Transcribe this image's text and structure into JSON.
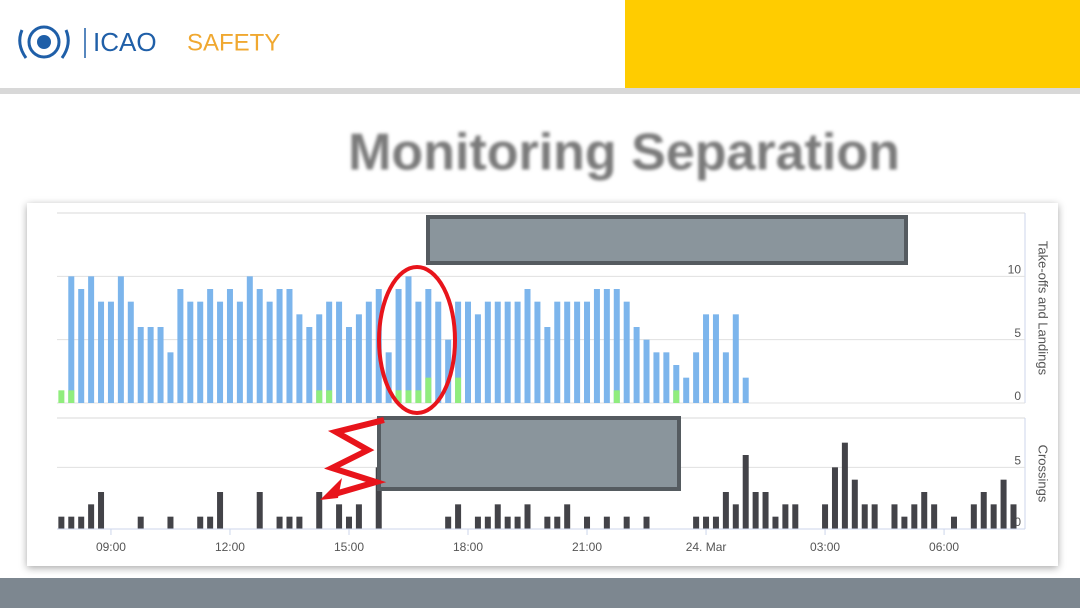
{
  "header": {
    "org": "ICAO",
    "section": "SAFETY"
  },
  "slide": {
    "title": "Monitoring Separation"
  },
  "chart_data": [
    {
      "type": "bar",
      "y_label": "Take-offs and Landings",
      "x": [
        7.75,
        8,
        8.25,
        8.5,
        8.75,
        9,
        9.25,
        9.5,
        9.75,
        10,
        10.25,
        10.5,
        10.75,
        11,
        11.25,
        11.5,
        11.75,
        12,
        12.25,
        12.5,
        12.75,
        13,
        13.25,
        13.5,
        13.75,
        14,
        14.25,
        14.5,
        14.75,
        15,
        15.25,
        15.5,
        15.75,
        16,
        16.25,
        16.5,
        16.75,
        17,
        17.25,
        17.5,
        17.75,
        18,
        18.25,
        18.5,
        18.75,
        19,
        19.25,
        19.5,
        19.75,
        20,
        20.25,
        20.5,
        20.75,
        21,
        21.25,
        21.5,
        21.75,
        22,
        22.25,
        22.5,
        22.75,
        23,
        23.25,
        23.5,
        23.75,
        24,
        24.25,
        24.5,
        24.75,
        25
      ],
      "xlim": [
        7.64,
        32.04
      ],
      "ylim": [
        0,
        15
      ],
      "yticks": [
        0,
        5,
        10
      ],
      "grid": true,
      "series": [
        {
          "color": "#7cb5ec",
          "values": [
            null,
            10,
            9,
            10,
            8,
            8,
            10,
            8,
            6,
            6,
            6,
            4,
            9,
            8,
            8,
            9,
            8,
            9,
            8,
            10,
            9,
            8,
            9,
            9,
            7,
            6,
            7,
            8,
            8,
            6,
            7,
            8,
            9,
            4,
            9,
            10,
            8,
            9,
            8,
            5,
            8,
            8,
            7,
            8,
            8,
            8,
            8,
            9,
            8,
            6,
            8,
            8,
            8,
            8,
            9,
            9,
            9,
            8,
            6,
            5,
            4,
            4,
            3,
            2,
            4,
            7,
            7,
            4,
            7,
            2
          ]
        },
        {
          "color": "#90ed7d",
          "values": [
            1,
            1,
            null,
            null,
            null,
            null,
            null,
            null,
            null,
            null,
            null,
            null,
            null,
            null,
            null,
            null,
            null,
            null,
            null,
            null,
            null,
            null,
            null,
            null,
            null,
            null,
            1,
            1,
            null,
            null,
            null,
            null,
            null,
            null,
            1,
            1,
            1,
            2,
            null,
            null,
            2,
            null,
            null,
            null,
            null,
            null,
            null,
            null,
            null,
            null,
            null,
            null,
            null,
            null,
            null,
            null,
            1,
            null,
            null,
            null,
            null,
            null,
            1,
            null,
            null,
            null,
            null,
            null,
            null,
            null
          ]
        }
      ]
    },
    {
      "type": "bar",
      "y_label": "Crossings",
      "x": [
        7.75,
        8,
        8.25,
        8.5,
        8.75,
        9,
        9.25,
        9.5,
        9.75,
        10,
        10.25,
        10.5,
        10.75,
        11,
        11.25,
        11.5,
        11.75,
        12,
        12.25,
        12.5,
        12.75,
        13,
        13.25,
        13.5,
        13.75,
        14,
        14.25,
        14.5,
        14.75,
        15,
        15.25,
        15.5,
        15.75,
        16,
        16.25,
        16.5,
        16.75,
        17,
        17.25,
        17.5,
        17.75,
        18,
        18.25,
        18.5,
        18.75,
        19,
        19.25,
        19.5,
        19.75,
        20,
        20.25,
        20.5,
        20.75,
        21,
        21.25,
        21.5,
        21.75,
        22,
        22.25,
        22.5,
        22.75,
        23,
        23.25,
        23.5,
        23.75,
        24,
        24.25,
        24.5,
        24.75,
        25,
        25.25,
        25.5,
        25.75,
        26,
        26.25,
        26.5,
        26.75,
        27,
        27.25,
        27.5,
        27.75,
        28,
        28.25,
        28.5,
        28.75,
        29,
        29.25,
        29.5,
        29.75,
        30,
        30.25,
        30.5,
        30.75,
        31,
        31.25,
        31.5,
        31.75
      ],
      "xlim": [
        7.64,
        32.04
      ],
      "ylim": [
        0,
        9
      ],
      "yticks": [
        0,
        5
      ],
      "grid": true,
      "xticks": [
        {
          "value": 9,
          "label": "09:00"
        },
        {
          "value": 12,
          "label": "12:00"
        },
        {
          "value": 15,
          "label": "15:00"
        },
        {
          "value": 18,
          "label": "18:00"
        },
        {
          "value": 21,
          "label": "21:00"
        },
        {
          "value": 24,
          "label": "24. Mar"
        },
        {
          "value": 27,
          "label": "03:00"
        },
        {
          "value": 30,
          "label": "06:00"
        }
      ],
      "series": [
        {
          "color": "#434348",
          "values": [
            1,
            1,
            1,
            2,
            3,
            null,
            null,
            null,
            1,
            null,
            null,
            1,
            null,
            null,
            1,
            1,
            3,
            null,
            null,
            null,
            3,
            null,
            1,
            1,
            1,
            null,
            3,
            null,
            2,
            1,
            2,
            null,
            5,
            null,
            null,
            null,
            null,
            null,
            null,
            1,
            2,
            null,
            1,
            1,
            2,
            1,
            1,
            2,
            null,
            1,
            1,
            2,
            null,
            1,
            null,
            1,
            null,
            1,
            null,
            1,
            null,
            null,
            null,
            null,
            1,
            1,
            1,
            3,
            2,
            6,
            3,
            3,
            1,
            2,
            2,
            null,
            null,
            2,
            5,
            7,
            4,
            2,
            2,
            null,
            2,
            1,
            2,
            3,
            2,
            null,
            1,
            null,
            2,
            3,
            2,
            4,
            2
          ]
        }
      ]
    }
  ]
}
